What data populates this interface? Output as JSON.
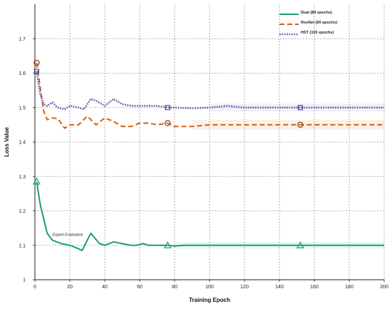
{
  "chart_data": {
    "type": "line",
    "title": "",
    "xlabel": "Training Epoch",
    "ylabel": "Loss Value",
    "xlim": [
      0,
      200
    ],
    "ylim": [
      1.0,
      1.8
    ],
    "x_ticks": [
      0,
      20,
      40,
      60,
      80,
      100,
      120,
      140,
      160,
      180,
      200
    ],
    "y_ticks": [
      1,
      1.1,
      1.2,
      1.3,
      1.4,
      1.5,
      1.6,
      1.7
    ],
    "grid": true,
    "legend_position": "top-right",
    "series": [
      {
        "name": "Dual (80 epochs)",
        "color": "#1a9e77",
        "style": "solid",
        "marker": "triangle",
        "marker_x": [
          1,
          76,
          152
        ],
        "band_from": 80,
        "x": [
          1,
          3,
          7,
          10,
          15,
          20,
          25,
          27,
          32,
          37,
          40,
          45,
          50,
          55,
          58,
          62,
          65,
          70,
          76,
          80,
          85,
          90,
          95,
          100,
          120,
          140,
          160,
          180,
          200
        ],
        "y": [
          1.285,
          1.22,
          1.135,
          1.115,
          1.105,
          1.1,
          1.09,
          1.085,
          1.135,
          1.105,
          1.1,
          1.11,
          1.105,
          1.1,
          1.1,
          1.105,
          1.1,
          1.1,
          1.1,
          1.098,
          1.1,
          1.1,
          1.1,
          1.1,
          1.1,
          1.1,
          1.1,
          1.1,
          1.1
        ]
      },
      {
        "name": "ResNet (90 epochs)",
        "color": "#d35f0f",
        "style": "dashed",
        "marker": "circle",
        "marker_x": [
          1,
          76,
          152
        ],
        "band_from": 90,
        "x": [
          1,
          3,
          5,
          7,
          10,
          13,
          15,
          17,
          20,
          25,
          30,
          35,
          40,
          45,
          50,
          55,
          60,
          65,
          70,
          76,
          80,
          90,
          100,
          120,
          140,
          160,
          180,
          200
        ],
        "y": [
          1.63,
          1.56,
          1.49,
          1.465,
          1.47,
          1.468,
          1.455,
          1.44,
          1.45,
          1.45,
          1.475,
          1.45,
          1.47,
          1.46,
          1.445,
          1.445,
          1.455,
          1.455,
          1.45,
          1.455,
          1.445,
          1.445,
          1.45,
          1.45,
          1.45,
          1.45,
          1.45,
          1.45
        ]
      },
      {
        "name": "HST (100 epochs)",
        "color": "#6f60b0",
        "style": "dotted",
        "marker": "square",
        "marker_x": [
          1,
          76,
          152
        ],
        "band_from": 100,
        "x": [
          1,
          3,
          5,
          7,
          10,
          13,
          17,
          20,
          25,
          28,
          32,
          35,
          40,
          45,
          50,
          55,
          60,
          65,
          70,
          76,
          80,
          90,
          100,
          110,
          120,
          140,
          160,
          180,
          200
        ],
        "y": [
          1.605,
          1.54,
          1.51,
          1.505,
          1.515,
          1.5,
          1.495,
          1.505,
          1.5,
          1.495,
          1.525,
          1.52,
          1.505,
          1.525,
          1.51,
          1.505,
          1.505,
          1.505,
          1.505,
          1.5,
          1.5,
          1.498,
          1.5,
          1.505,
          1.5,
          1.5,
          1.5,
          1.5,
          1.5
        ]
      }
    ],
    "annotations": [
      {
        "text": "Expert Evaluation",
        "x": 10,
        "y": 1.115
      }
    ]
  }
}
